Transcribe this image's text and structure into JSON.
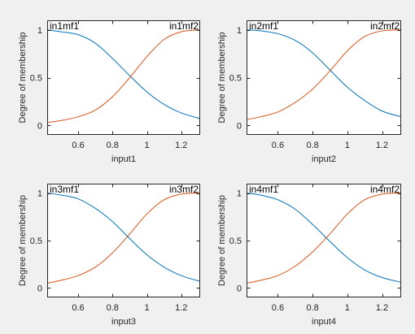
{
  "figure": {
    "background": "#f0f0f0",
    "axes_background": "#ffffff"
  },
  "chart_data": [
    {
      "type": "line",
      "xlabel": "input1",
      "ylabel": "Degree of membership",
      "xlim": [
        0.42,
        1.31
      ],
      "ylim": [
        -0.1,
        1.1
      ],
      "xticks": [
        0.6,
        0.8,
        1,
        1.2
      ],
      "yticks": [
        0,
        0.5,
        1
      ],
      "xtick_labels": [
        "0.6",
        "0.8",
        "1",
        "1.2"
      ],
      "ytick_labels": [
        "0",
        "0.5",
        "1"
      ],
      "grid": false,
      "series": [
        {
          "name": "in1mf1",
          "color": "#0072bd",
          "x": [
            0.42,
            0.5,
            0.6,
            0.7,
            0.8,
            0.9,
            1.0,
            1.1,
            1.2,
            1.31
          ],
          "y": [
            1.0,
            0.98,
            0.95,
            0.86,
            0.7,
            0.52,
            0.35,
            0.22,
            0.13,
            0.07
          ]
        },
        {
          "name": "in1mf2",
          "color": "#d95319",
          "x": [
            0.42,
            0.5,
            0.6,
            0.7,
            0.8,
            0.9,
            1.0,
            1.1,
            1.2,
            1.31
          ],
          "y": [
            0.03,
            0.05,
            0.09,
            0.16,
            0.3,
            0.5,
            0.72,
            0.9,
            0.98,
            1.0
          ]
        }
      ]
    },
    {
      "type": "line",
      "xlabel": "input2",
      "ylabel": "Degree of membership",
      "xlim": [
        0.42,
        1.31
      ],
      "ylim": [
        -0.1,
        1.1
      ],
      "xticks": [
        0.6,
        0.8,
        1,
        1.2
      ],
      "yticks": [
        0,
        0.5,
        1
      ],
      "xtick_labels": [
        "0.6",
        "0.8",
        "1",
        "1.2"
      ],
      "ytick_labels": [
        "0",
        "0.5",
        "1"
      ],
      "grid": false,
      "series": [
        {
          "name": "in2mf1",
          "color": "#0072bd",
          "x": [
            0.42,
            0.5,
            0.6,
            0.7,
            0.8,
            0.9,
            1.0,
            1.1,
            1.2,
            1.31
          ],
          "y": [
            1.0,
            0.99,
            0.96,
            0.89,
            0.76,
            0.58,
            0.4,
            0.26,
            0.15,
            0.09
          ]
        },
        {
          "name": "in2mf2",
          "color": "#d95319",
          "x": [
            0.42,
            0.5,
            0.6,
            0.7,
            0.8,
            0.9,
            1.0,
            1.1,
            1.2,
            1.31
          ],
          "y": [
            0.06,
            0.09,
            0.14,
            0.24,
            0.38,
            0.57,
            0.78,
            0.93,
            0.99,
            1.0
          ]
        }
      ]
    },
    {
      "type": "line",
      "xlabel": "input3",
      "ylabel": "Degree of membership",
      "xlim": [
        0.42,
        1.31
      ],
      "ylim": [
        -0.1,
        1.1
      ],
      "xticks": [
        0.6,
        0.8,
        1,
        1.2
      ],
      "yticks": [
        0,
        0.5,
        1
      ],
      "xtick_labels": [
        "0.6",
        "0.8",
        "1",
        "1.2"
      ],
      "ytick_labels": [
        "0",
        "0.5",
        "1"
      ],
      "grid": false,
      "series": [
        {
          "name": "in3mf1",
          "color": "#0072bd",
          "x": [
            0.42,
            0.5,
            0.6,
            0.7,
            0.8,
            0.9,
            1.0,
            1.1,
            1.2,
            1.31
          ],
          "y": [
            1.0,
            0.98,
            0.94,
            0.84,
            0.7,
            0.52,
            0.35,
            0.22,
            0.13,
            0.07
          ]
        },
        {
          "name": "in3mf2",
          "color": "#d95319",
          "x": [
            0.42,
            0.5,
            0.6,
            0.7,
            0.8,
            0.9,
            1.0,
            1.1,
            1.2,
            1.31
          ],
          "y": [
            0.05,
            0.08,
            0.13,
            0.22,
            0.37,
            0.57,
            0.78,
            0.93,
            0.99,
            1.0
          ]
        }
      ]
    },
    {
      "type": "line",
      "xlabel": "input4",
      "ylabel": "Degree of membership",
      "xlim": [
        0.42,
        1.31
      ],
      "ylim": [
        -0.1,
        1.1
      ],
      "xticks": [
        0.6,
        0.8,
        1,
        1.2
      ],
      "yticks": [
        0,
        0.5,
        1
      ],
      "xtick_labels": [
        "0.6",
        "0.8",
        "1",
        "1.2"
      ],
      "ytick_labels": [
        "0",
        "0.5",
        "1"
      ],
      "grid": false,
      "series": [
        {
          "name": "in4mf1",
          "color": "#0072bd",
          "x": [
            0.42,
            0.5,
            0.6,
            0.7,
            0.8,
            0.9,
            1.0,
            1.1,
            1.2,
            1.31
          ],
          "y": [
            1.0,
            0.98,
            0.93,
            0.83,
            0.67,
            0.49,
            0.32,
            0.19,
            0.11,
            0.06
          ]
        },
        {
          "name": "in4mf2",
          "color": "#d95319",
          "x": [
            0.42,
            0.5,
            0.6,
            0.7,
            0.8,
            0.9,
            1.0,
            1.1,
            1.2,
            1.31
          ],
          "y": [
            0.05,
            0.08,
            0.13,
            0.23,
            0.38,
            0.57,
            0.78,
            0.93,
            0.99,
            1.0
          ]
        }
      ]
    }
  ]
}
